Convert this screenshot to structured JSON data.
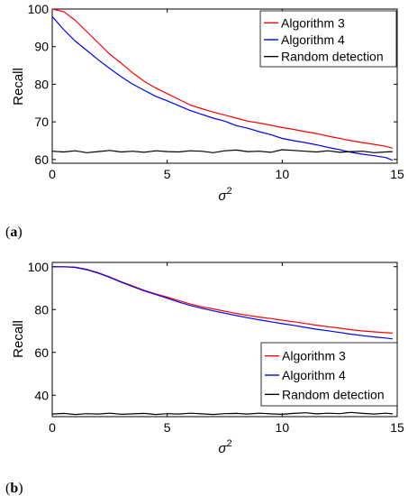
{
  "colors": {
    "alg3": "#ff0000",
    "alg4": "#0000ff",
    "random": "#000000"
  },
  "chart_data": [
    {
      "panel_label": "(a)",
      "type": "line",
      "xlabel": "σ2",
      "ylabel": "Recall",
      "xlim": [
        0,
        15
      ],
      "ylim": [
        59,
        100
      ],
      "xticks": [
        0,
        5,
        10,
        15
      ],
      "yticks": [
        60,
        70,
        80,
        90,
        100
      ],
      "legend_position": "top-right",
      "series": [
        {
          "name": "Algorithm 3",
          "color": "#ff0000",
          "x": [
            0,
            0.5,
            1,
            1.5,
            2,
            2.5,
            3,
            3.5,
            4,
            4.5,
            5,
            5.5,
            6,
            6.5,
            7,
            7.5,
            8,
            8.5,
            9,
            9.5,
            10,
            10.5,
            11,
            11.5,
            12,
            12.5,
            13,
            13.5,
            14,
            14.5,
            14.8
          ],
          "y": [
            100,
            99.3,
            97,
            94,
            91,
            88,
            85.6,
            83,
            80.8,
            79,
            77.5,
            76,
            74.5,
            73.5,
            72.6,
            71.8,
            71,
            70.2,
            69.7,
            69.1,
            68.5,
            68,
            67.4,
            66.9,
            66.2,
            65.6,
            65,
            64.5,
            64,
            63.5,
            63
          ]
        },
        {
          "name": "Algorithm 4",
          "color": "#0000ff",
          "x": [
            0,
            0.5,
            1,
            1.5,
            2,
            2.5,
            3,
            3.5,
            4,
            4.5,
            5,
            5.5,
            6,
            6.5,
            7,
            7.5,
            8,
            8.5,
            9,
            9.5,
            10,
            10.5,
            11,
            11.5,
            12,
            12.5,
            13,
            13.5,
            14,
            14.5,
            14.8
          ],
          "y": [
            98,
            94.5,
            91.5,
            89,
            86.5,
            84.2,
            82,
            80,
            78.4,
            76.8,
            75.6,
            74.3,
            73,
            72,
            71,
            70.2,
            69,
            68.3,
            67.4,
            66.6,
            65.6,
            65,
            64.5,
            63.9,
            63.2,
            62.6,
            61.9,
            61.4,
            61,
            60.5,
            59.8
          ]
        },
        {
          "name": "Random detection",
          "color": "#000000",
          "x": [
            0,
            0.5,
            1,
            1.5,
            2,
            2.5,
            3,
            3.5,
            4,
            4.5,
            5,
            5.5,
            6,
            6.5,
            7,
            7.5,
            8,
            8.5,
            9,
            9.5,
            10,
            10.5,
            11,
            11.5,
            12,
            12.5,
            13,
            13.5,
            14,
            14.5,
            14.8
          ],
          "y": [
            62.2,
            62,
            62.3,
            61.8,
            62.1,
            62.4,
            62,
            62.2,
            61.9,
            62.3,
            62.1,
            62,
            62.3,
            62.2,
            61.8,
            62.3,
            62.5,
            62.1,
            62.2,
            61.9,
            62.6,
            62.4,
            62.2,
            62,
            62.3,
            61.9,
            62.1,
            62.2,
            61.8,
            62,
            62.1
          ]
        }
      ]
    },
    {
      "panel_label": "(b)",
      "type": "line",
      "xlabel": "σ2",
      "ylabel": "Recall",
      "xlim": [
        0,
        15
      ],
      "ylim": [
        30,
        102
      ],
      "xticks": [
        0,
        5,
        10,
        15
      ],
      "yticks": [
        40,
        60,
        80,
        100
      ],
      "legend_position": "bottom-right",
      "series": [
        {
          "name": "Algorithm 3",
          "color": "#ff0000",
          "x": [
            0,
            0.5,
            1,
            1.5,
            2,
            2.5,
            3,
            3.5,
            4,
            4.5,
            5,
            5.5,
            6,
            6.5,
            7,
            7.5,
            8,
            8.5,
            9,
            9.5,
            10,
            10.5,
            11,
            11.5,
            12,
            12.5,
            13,
            13.5,
            14,
            14.5,
            14.8
          ],
          "y": [
            100,
            100,
            99.8,
            98.8,
            97.2,
            95.2,
            93,
            91,
            89,
            87.3,
            85.8,
            84.2,
            82.6,
            81.3,
            80.3,
            79.2,
            78.2,
            77.3,
            76.5,
            75.8,
            75,
            74.3,
            73.5,
            72.7,
            72,
            71.3,
            70.6,
            70,
            69.6,
            69.2,
            69
          ]
        },
        {
          "name": "Algorithm 4",
          "color": "#0000ff",
          "x": [
            0,
            0.5,
            1,
            1.5,
            2,
            2.5,
            3,
            3.5,
            4,
            4.5,
            5,
            5.5,
            6,
            6.5,
            7,
            7.5,
            8,
            8.5,
            9,
            9.5,
            10,
            10.5,
            11,
            11.5,
            12,
            12.5,
            13,
            13.5,
            14,
            14.5,
            14.8
          ],
          "y": [
            100,
            100,
            99.7,
            98.6,
            97,
            95,
            92.8,
            90.7,
            88.7,
            87,
            85.3,
            83.5,
            81.9,
            80.6,
            79.4,
            78.3,
            77.2,
            76.2,
            75.2,
            74.3,
            73.4,
            72.6,
            71.7,
            70.8,
            70.1,
            69.3,
            68.5,
            67.8,
            67.2,
            66.7,
            66.3
          ]
        },
        {
          "name": "Random detection",
          "color": "#000000",
          "x": [
            0,
            0.5,
            1,
            1.5,
            2,
            2.5,
            3,
            3.5,
            4,
            4.5,
            5,
            5.5,
            6,
            6.5,
            7,
            7.5,
            8,
            8.5,
            9,
            9.5,
            10,
            10.5,
            11,
            11.5,
            12,
            12.5,
            13,
            13.5,
            14,
            14.5,
            14.8
          ],
          "y": [
            31.2,
            31.5,
            31,
            31.4,
            31.2,
            31.6,
            31.1,
            31.3,
            31.5,
            31,
            31.4,
            31.2,
            31.6,
            31.3,
            31,
            31.4,
            31.5,
            31.2,
            31.6,
            31.3,
            31.1,
            31.5,
            31.8,
            31.3,
            31.6,
            31.4,
            32,
            31.5,
            31.2,
            31.6,
            31.3
          ]
        }
      ]
    }
  ]
}
